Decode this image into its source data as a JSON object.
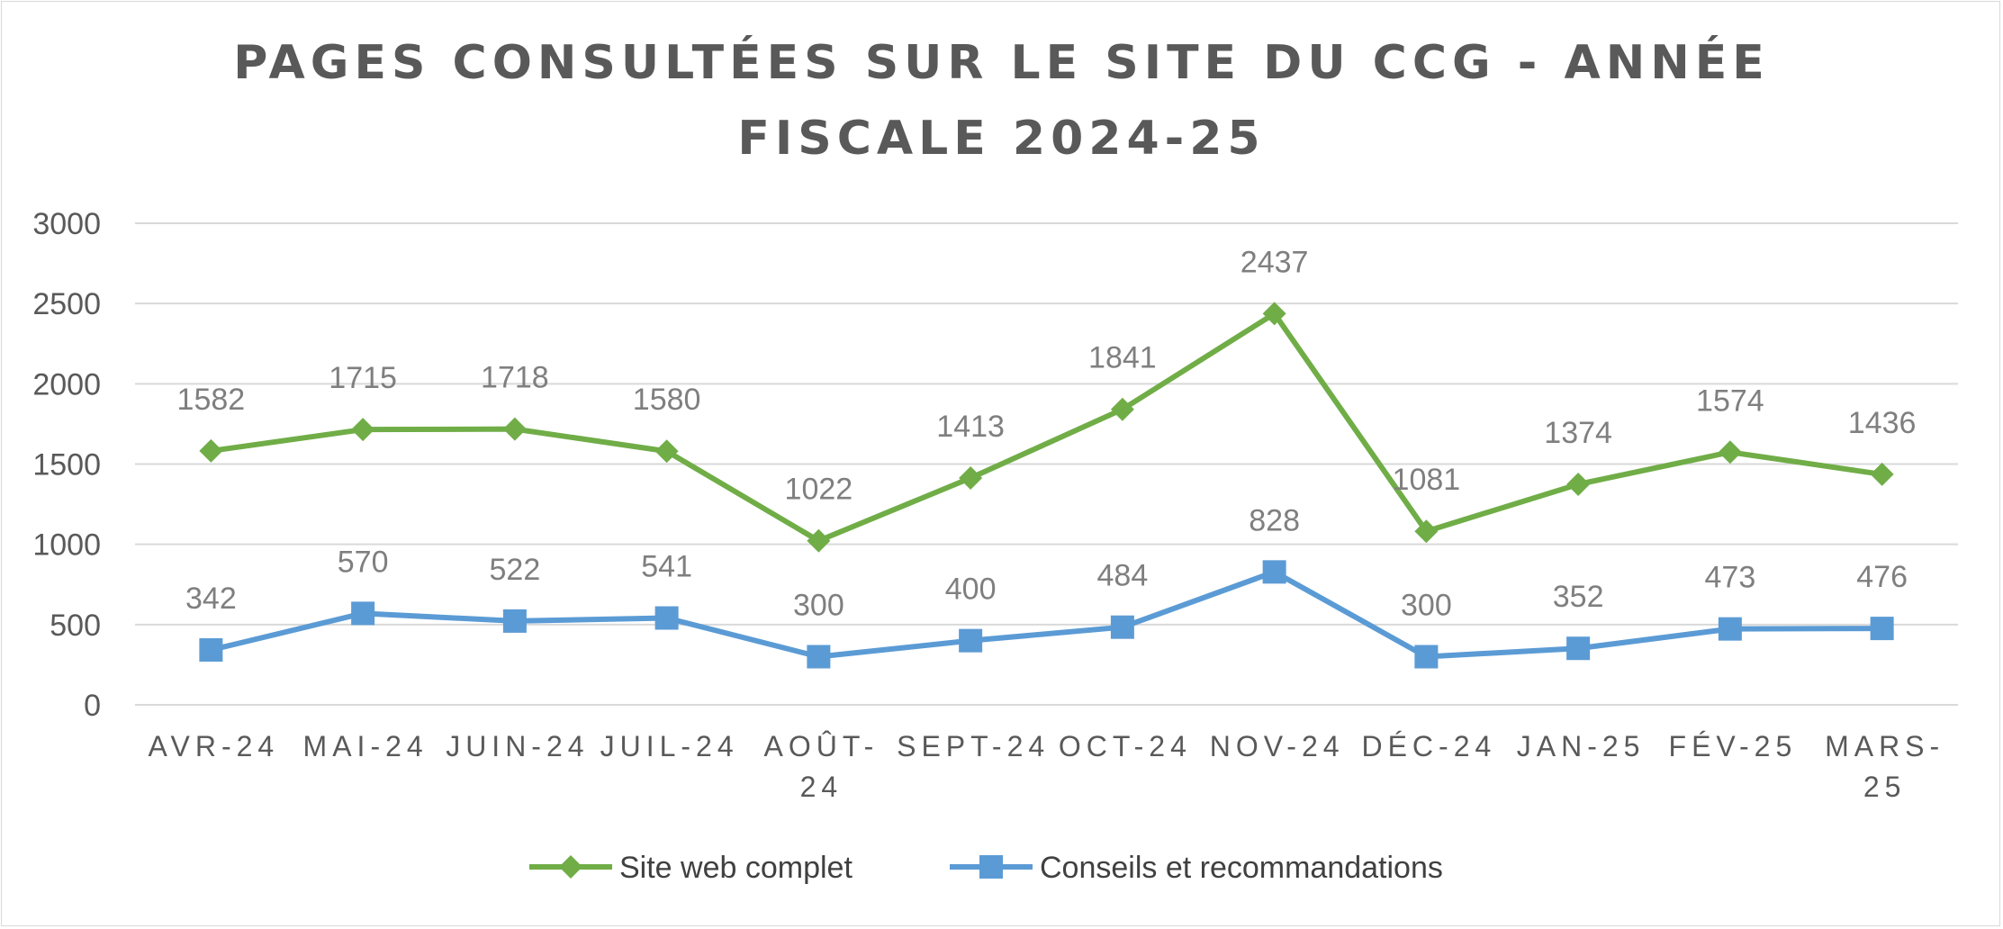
{
  "chart_data": {
    "type": "line",
    "title_lines": [
      "PAGES CONSULTÉES SUR LE SITE DU CCG - ANNÉE",
      "FISCALE 2024-25"
    ],
    "categories": [
      "AVR-24",
      "MAI-24",
      "JUIN-24",
      "JUIL-24",
      "AOÛT-24",
      "SEPT-24",
      "OCT-24",
      "NOV-24",
      "DÉC-24",
      "JAN-25",
      "FÉV-25",
      "MARS-25"
    ],
    "category_lines": [
      [
        "AVR-24"
      ],
      [
        "MAI-24"
      ],
      [
        "JUIN-24"
      ],
      [
        "JUIL-24"
      ],
      [
        "AOÛT-",
        "24"
      ],
      [
        "SEPT-24"
      ],
      [
        "OCT-24"
      ],
      [
        "NOV-24"
      ],
      [
        "DÉC-24"
      ],
      [
        "JAN-25"
      ],
      [
        "FÉV-25"
      ],
      [
        "MARS-",
        "25"
      ]
    ],
    "series": [
      {
        "name": "Site web complet",
        "color": "#70ad47",
        "marker": "diamond",
        "values": [
          1582,
          1715,
          1718,
          1580,
          1022,
          1413,
          1841,
          2437,
          1081,
          1374,
          1574,
          1436
        ]
      },
      {
        "name": "Conseils et recommandations",
        "color": "#5b9bd5",
        "marker": "square",
        "values": [
          342,
          570,
          522,
          541,
          300,
          400,
          484,
          828,
          300,
          352,
          473,
          476
        ]
      }
    ],
    "ylim": [
      0,
      3000
    ],
    "yticks": [
      0,
      500,
      1000,
      1500,
      2000,
      2500,
      3000
    ],
    "grid": true,
    "gridline_color": "#d9d9d9",
    "legend_position": "bottom",
    "data_labels": true
  }
}
